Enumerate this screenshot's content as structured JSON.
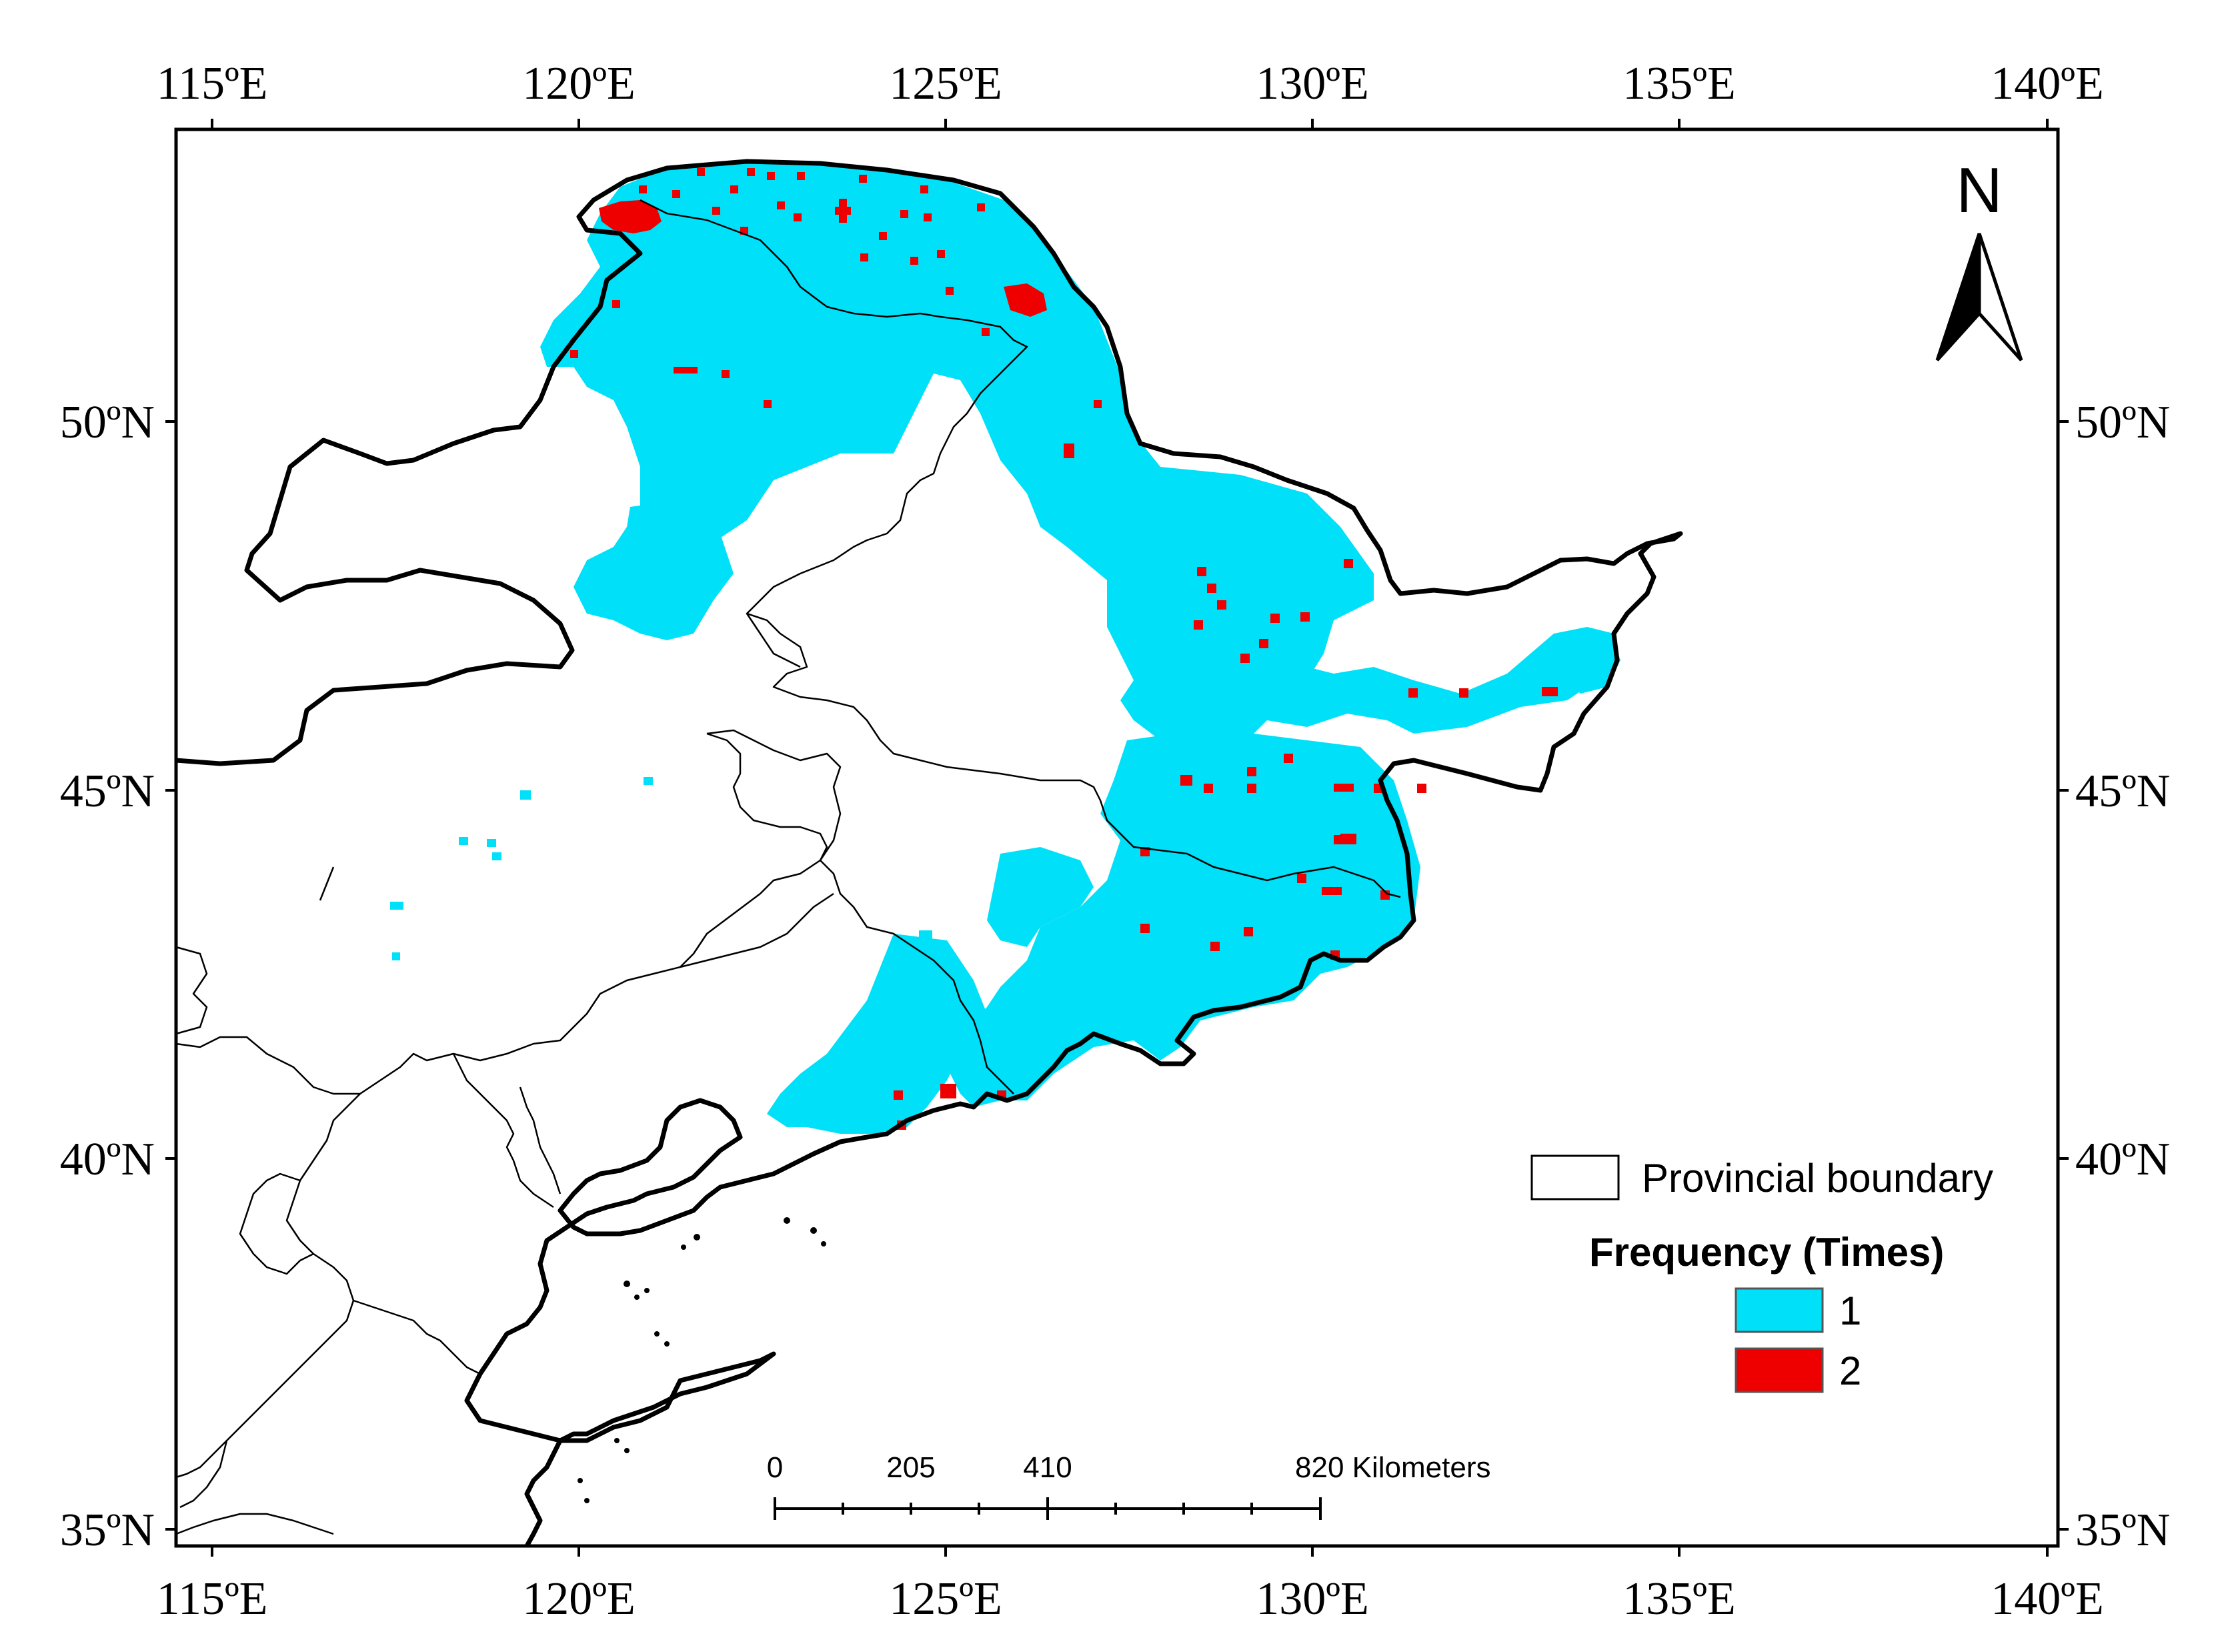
{
  "map": {
    "lon_ticks": [
      "115ºE",
      "120ºE",
      "125ºE",
      "130ºE",
      "135ºE",
      "140ºE"
    ],
    "lat_ticks": [
      "50ºN",
      "45ºN",
      "40ºN",
      "35ºN"
    ],
    "north_arrow": {
      "label": "N",
      "icon": "north-arrow-icon"
    },
    "legend": {
      "boundary_label": "Provincial boundary",
      "title": "Frequency (Times)",
      "classes": [
        {
          "label": "1",
          "color": "#00e0f8"
        },
        {
          "label": "2",
          "color": "#ee0000"
        }
      ]
    },
    "scale_bar": {
      "labels": [
        "0",
        "205",
        "410",
        "820 Kilometers"
      ]
    },
    "colors": {
      "freq_1": "#00e0f8",
      "freq_2": "#ee0000",
      "border": "#000000",
      "land": "#ffffff"
    }
  }
}
